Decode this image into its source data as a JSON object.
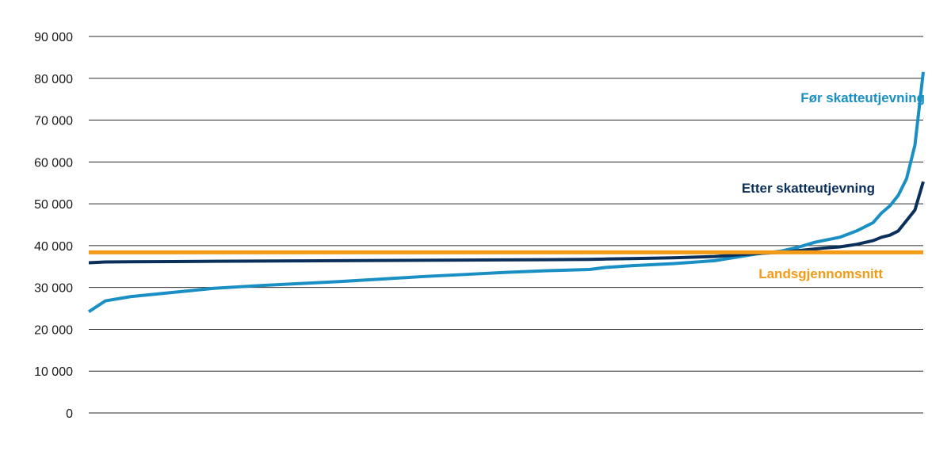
{
  "chart_data": {
    "type": "line",
    "title": "",
    "xlabel": "",
    "ylabel": "",
    "ylim": [
      0,
      90000
    ],
    "yticks": [
      0,
      10000,
      20000,
      30000,
      40000,
      50000,
      60000,
      70000,
      80000,
      90000
    ],
    "ytick_labels": [
      "0",
      "10 000",
      "20 000",
      "30 000",
      "40 000",
      "50 000",
      "60 000",
      "70 000",
      "80 000",
      "90 000"
    ],
    "grid": "horizontal",
    "legend": "inline labels",
    "x": [
      0,
      0.02,
      0.05,
      0.1,
      0.15,
      0.2,
      0.25,
      0.3,
      0.35,
      0.4,
      0.45,
      0.5,
      0.55,
      0.6,
      0.62,
      0.65,
      0.7,
      0.75,
      0.8,
      0.83,
      0.85,
      0.87,
      0.88,
      0.9,
      0.92,
      0.94,
      0.95,
      0.96,
      0.97,
      0.98,
      0.99,
      1.0
    ],
    "series": [
      {
        "name": "Før skatteutjevning",
        "color": "#1a8fc4",
        "label": "Før skatteutjevning",
        "values": [
          24200,
          26800,
          27800,
          28800,
          29800,
          30400,
          30900,
          31400,
          32000,
          32600,
          33100,
          33600,
          34000,
          34300,
          34800,
          35200,
          35700,
          36400,
          38000,
          38700,
          39600,
          40800,
          41200,
          42000,
          43500,
          45500,
          47800,
          49500,
          52000,
          56000,
          64000,
          81500
        ]
      },
      {
        "name": "Etter skatteutjevning",
        "color": "#0b2f5b",
        "label": "Etter skatteutjevning",
        "values": [
          35900,
          36100,
          36150,
          36200,
          36250,
          36300,
          36350,
          36400,
          36450,
          36500,
          36550,
          36600,
          36650,
          36700,
          36800,
          36900,
          37100,
          37400,
          38100,
          38400,
          38800,
          39200,
          39400,
          39700,
          40300,
          41200,
          42000,
          42500,
          43500,
          46000,
          48500,
          55300
        ]
      },
      {
        "name": "Landsgjennomsnitt",
        "color": "#f39b17",
        "label": "Landsgjennomsnitt",
        "values": [
          38400,
          38400,
          38400,
          38400,
          38400,
          38400,
          38400,
          38400,
          38400,
          38400,
          38400,
          38400,
          38400,
          38400,
          38400,
          38400,
          38400,
          38400,
          38400,
          38400,
          38400,
          38400,
          38400,
          38400,
          38400,
          38400,
          38400,
          38400,
          38400,
          38400,
          38400,
          38400
        ]
      }
    ]
  }
}
